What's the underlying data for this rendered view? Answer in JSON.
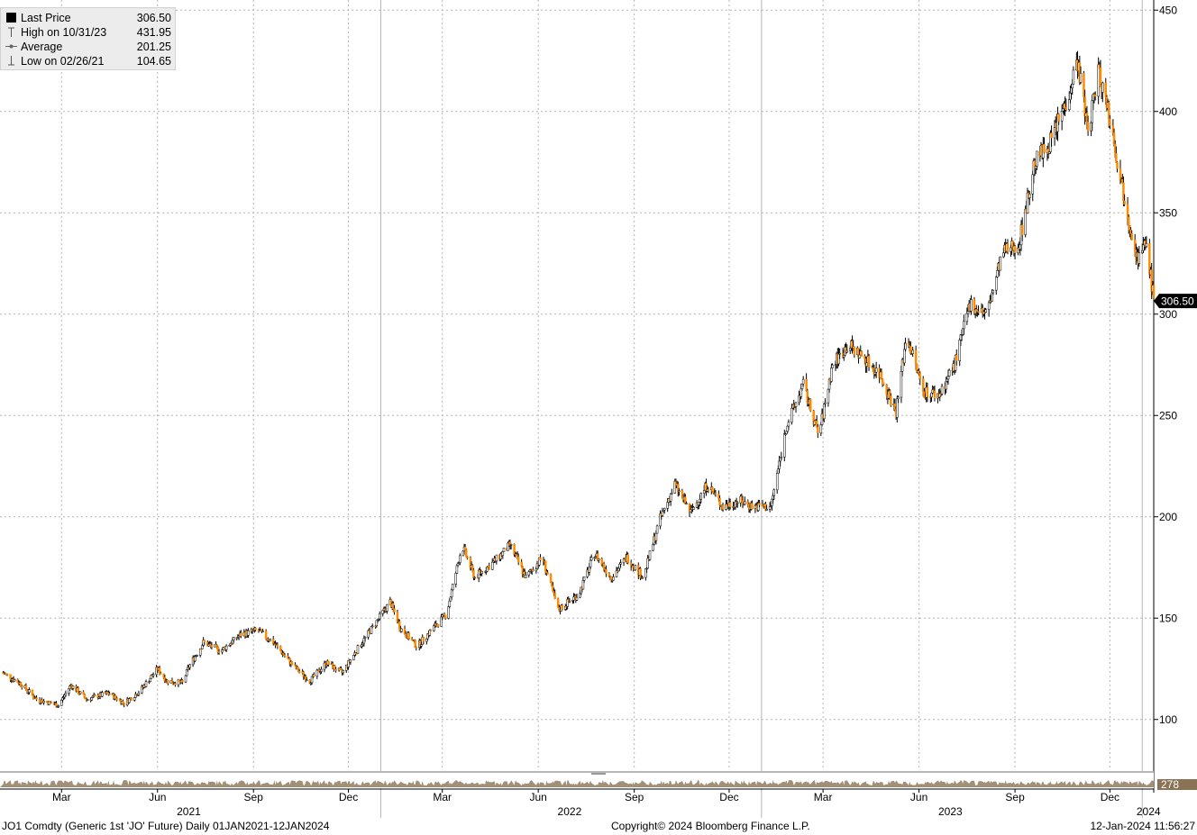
{
  "legend": {
    "last_price_label": "Last Price",
    "last_price_value": "306.50",
    "high_label": "High on 10/31/23",
    "high_value": "431.95",
    "average_label": "Average",
    "average_value": "201.25",
    "low_label": "Low on 02/26/21",
    "low_value": "104.65"
  },
  "colors": {
    "up_candle": "#ffffff",
    "down_candle": "#ff8c00",
    "wick": "#000000",
    "grid": "#b4b4b4",
    "last_price_tag": "#000000",
    "volume_tag": "#8a7355"
  },
  "last_price_tag": "306.50",
  "volume_tag": "278",
  "footer": {
    "left": "JO1 Comdty (Generic 1st 'JO' Future)  Daily 01JAN2021-12JAN2024",
    "center": "Copyright© 2024 Bloomberg Finance L.P.",
    "right": "12-Jan-2024 11:56:27"
  },
  "chart_data": {
    "type": "candlestick",
    "ylim": [
      75,
      455
    ],
    "y_ticks": [
      "100",
      "150",
      "200",
      "250",
      "300",
      "350",
      "400",
      "450"
    ],
    "y_axis_position": "right",
    "x_start": "2021-01-01",
    "x_end": "2024-01-12",
    "x_month_ticks": [
      "Mar",
      "Jun",
      "Sep",
      "Dec",
      "Mar",
      "Jun",
      "Sep",
      "Dec",
      "Mar",
      "Jun",
      "Sep",
      "Dec"
    ],
    "x_month_tick_dates": [
      "2021-03-01",
      "2021-06-01",
      "2021-09-01",
      "2021-12-01",
      "2022-03-01",
      "2022-06-01",
      "2022-09-01",
      "2022-12-01",
      "2023-03-01",
      "2023-06-01",
      "2023-09-01",
      "2023-12-01"
    ],
    "x_year_labels": [
      "2021",
      "2022",
      "2023",
      "2024"
    ],
    "x_year_label_dates": [
      "2021-07-01",
      "2022-07-01",
      "2023-07-01",
      "2024-01-07"
    ],
    "grid": true,
    "legend_position": "top-left",
    "series": [
      {
        "name": "Last Price",
        "anchors": [
          [
            "2021-01-04",
            123
          ],
          [
            "2021-01-20",
            118
          ],
          [
            "2021-02-05",
            110
          ],
          [
            "2021-02-26",
            107
          ],
          [
            "2021-03-10",
            117
          ],
          [
            "2021-03-25",
            110
          ],
          [
            "2021-04-15",
            113
          ],
          [
            "2021-04-30",
            108
          ],
          [
            "2021-05-15",
            114
          ],
          [
            "2021-06-01",
            125
          ],
          [
            "2021-06-10",
            119
          ],
          [
            "2021-06-25",
            118
          ],
          [
            "2021-07-01",
            126
          ],
          [
            "2021-07-15",
            138
          ],
          [
            "2021-08-01",
            134
          ],
          [
            "2021-08-20",
            142
          ],
          [
            "2021-09-05",
            144
          ],
          [
            "2021-09-20",
            138
          ],
          [
            "2021-10-10",
            126
          ],
          [
            "2021-10-25",
            119
          ],
          [
            "2021-11-10",
            128
          ],
          [
            "2021-11-25",
            123
          ],
          [
            "2021-12-10",
            135
          ],
          [
            "2021-12-25",
            146
          ],
          [
            "2022-01-10",
            158
          ],
          [
            "2022-01-20",
            145
          ],
          [
            "2022-02-05",
            136
          ],
          [
            "2022-02-20",
            145
          ],
          [
            "2022-03-05",
            152
          ],
          [
            "2022-03-20",
            186
          ],
          [
            "2022-04-01",
            170
          ],
          [
            "2022-04-20",
            178
          ],
          [
            "2022-05-05",
            186
          ],
          [
            "2022-05-20",
            170
          ],
          [
            "2022-06-05",
            180
          ],
          [
            "2022-06-20",
            154
          ],
          [
            "2022-07-10",
            162
          ],
          [
            "2022-07-25",
            182
          ],
          [
            "2022-08-10",
            170
          ],
          [
            "2022-08-25",
            180
          ],
          [
            "2022-09-10",
            170
          ],
          [
            "2022-09-25",
            198
          ],
          [
            "2022-10-10",
            216
          ],
          [
            "2022-10-25",
            202
          ],
          [
            "2022-11-10",
            216
          ],
          [
            "2022-11-25",
            205
          ],
          [
            "2022-12-10",
            208
          ],
          [
            "2022-12-25",
            205
          ],
          [
            "2023-01-10",
            205
          ],
          [
            "2023-01-25",
            245
          ],
          [
            "2023-02-10",
            265
          ],
          [
            "2023-02-25",
            240
          ],
          [
            "2023-03-10",
            275
          ],
          [
            "2023-03-25",
            285
          ],
          [
            "2023-04-10",
            278
          ],
          [
            "2023-04-25",
            270
          ],
          [
            "2023-05-10",
            252
          ],
          [
            "2023-05-20",
            290
          ],
          [
            "2023-06-05",
            262
          ],
          [
            "2023-06-20",
            260
          ],
          [
            "2023-07-05",
            275
          ],
          [
            "2023-07-20",
            305
          ],
          [
            "2023-08-05",
            300
          ],
          [
            "2023-08-20",
            330
          ],
          [
            "2023-09-05",
            335
          ],
          [
            "2023-09-20",
            375
          ],
          [
            "2023-10-05",
            385
          ],
          [
            "2023-10-20",
            405
          ],
          [
            "2023-10-31",
            425
          ],
          [
            "2023-11-10",
            390
          ],
          [
            "2023-11-20",
            420
          ],
          [
            "2023-11-30",
            400
          ],
          [
            "2023-12-10",
            370
          ],
          [
            "2023-12-20",
            345
          ],
          [
            "2023-12-28",
            327
          ],
          [
            "2024-01-05",
            335
          ],
          [
            "2024-01-12",
            306.5
          ]
        ]
      }
    ]
  }
}
